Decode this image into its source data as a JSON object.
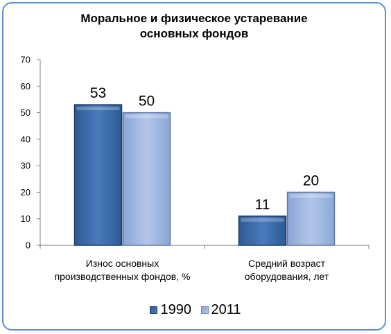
{
  "chart_data": {
    "type": "bar",
    "title": "Моральное и физическое устаревание основных фондов",
    "title_lines": [
      "Моральное и физическое устаревание",
      "основных фондов"
    ],
    "categories": [
      "Износ основных производственных фондов, %",
      "Средний возраст оборудования, лет"
    ],
    "category_lines": [
      [
        "Износ основных",
        "производственных фондов, %"
      ],
      [
        "Средний возраст",
        "оборудования, лет"
      ]
    ],
    "series": [
      {
        "name": "1990",
        "values": [
          53,
          11
        ],
        "color": "#3f6fae"
      },
      {
        "name": "2011",
        "values": [
          50,
          20
        ],
        "color": "#9fb6df"
      }
    ],
    "ylim": [
      0,
      70
    ],
    "yticks": [
      "0",
      "10",
      "20",
      "30",
      "40",
      "50",
      "60",
      "70"
    ],
    "data_labels": [
      [
        "53",
        "11"
      ],
      [
        "50",
        "20"
      ]
    ],
    "xlabel": "",
    "ylabel": "",
    "legend_position": "bottom",
    "grid": false
  },
  "colors": {
    "frame_border": "#5b8fd0",
    "axis": "#7f7f7f"
  }
}
